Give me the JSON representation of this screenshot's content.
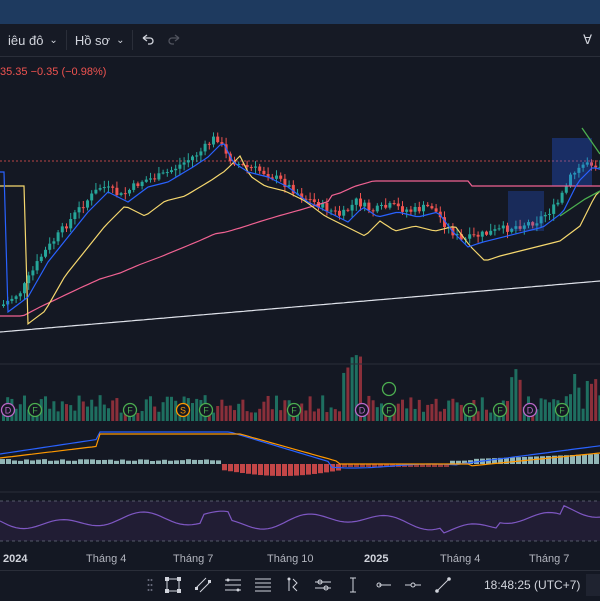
{
  "toolbar": {
    "chart_type_label": "iêu đô",
    "profile_label": "Hồ sơ",
    "undo_icon": "undo-icon",
    "redo_icon": "redo-icon"
  },
  "legend": {
    "price_change": "35.35 −0.35 (−0.98%)"
  },
  "time_axis": {
    "labels": [
      "2024",
      "Tháng 4",
      "Tháng 7",
      "Tháng 10",
      "2025",
      "Tháng 4",
      "Tháng 7"
    ]
  },
  "event_markers": [
    "D",
    "F",
    "F",
    "S",
    "F",
    "F",
    "D",
    "F",
    "F",
    "F",
    "D",
    "F"
  ],
  "clock": "18:48:25 (UTC+7)",
  "colors": {
    "up": "#26a69a",
    "down": "#ef5350",
    "ma_fast": "#2962ff",
    "ma_mid": "#f5d76e",
    "ma_slow": "#f06292",
    "ma_long": "#e0e3eb",
    "rsi": "#7e57c2"
  }
}
